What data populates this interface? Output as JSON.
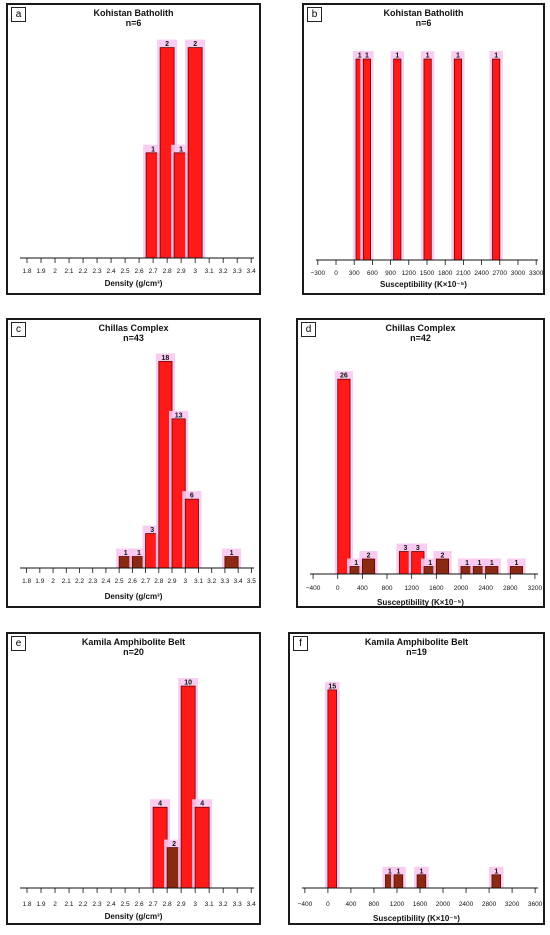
{
  "chart_data": [
    {
      "panel": "a",
      "type": "bar",
      "title": "Kohistan Batholith",
      "n": "n=6",
      "xlabel": "Density (g/cm³)",
      "xlim": [
        1.75,
        3.42
      ],
      "ticks": [
        1.8,
        1.9,
        2,
        2.1,
        2.2,
        2.3,
        2.4,
        2.5,
        2.6,
        2.7,
        2.8,
        2.9,
        3,
        3.1,
        3.2,
        3.3,
        3.4
      ],
      "tick_labels": [
        "1.8",
        "1.9",
        "2",
        "2.1",
        "2.2",
        "2.3",
        "2.4",
        "2.5",
        "2.6",
        "2.7",
        "2.8",
        "2.9",
        "3",
        "3.1",
        "3.2",
        "3.3",
        "3.4"
      ],
      "bars": [
        {
          "x0": 2.65,
          "x1": 2.75,
          "value": 1
        },
        {
          "x0": 2.75,
          "x1": 2.85,
          "value": 2
        },
        {
          "x0": 2.85,
          "x1": 2.95,
          "value": 1
        },
        {
          "x0": 2.95,
          "x1": 3.05,
          "value": 2
        }
      ],
      "ylim": [
        0,
        2.12
      ]
    },
    {
      "panel": "b",
      "type": "bar",
      "title": "Kohistan Batholith",
      "n": "n=6",
      "xlabel": "Susceptibility (K×10⁻⁵)",
      "xlim": [
        -330,
        3330
      ],
      "ticks": [
        -300,
        0,
        300,
        600,
        900,
        1200,
        1500,
        1800,
        2100,
        2400,
        2700,
        3000,
        3300
      ],
      "tick_labels": [
        "−300",
        "0",
        "300",
        "600",
        "900",
        "1200",
        "1500",
        "1800",
        "2100",
        "2400",
        "2700",
        "3000",
        "3300"
      ],
      "bars": [
        {
          "x0": 330,
          "x1": 450,
          "value": 1
        },
        {
          "x0": 450,
          "x1": 570,
          "value": 1
        },
        {
          "x0": 950,
          "x1": 1070,
          "value": 1
        },
        {
          "x0": 1450,
          "x1": 1570,
          "value": 1
        },
        {
          "x0": 1950,
          "x1": 2070,
          "value": 1
        },
        {
          "x0": 2580,
          "x1": 2700,
          "value": 1
        }
      ],
      "ylim": [
        0,
        1.06
      ]
    },
    {
      "panel": "c",
      "type": "bar",
      "title": "Chillas Complex",
      "n": "n=43",
      "xlabel": "Density (g/cm³)",
      "xlim": [
        1.75,
        3.52
      ],
      "ticks": [
        1.8,
        1.9,
        2,
        2.1,
        2.2,
        2.3,
        2.4,
        2.5,
        2.6,
        2.7,
        2.8,
        2.9,
        3,
        3.1,
        3.2,
        3.3,
        3.4,
        3.5
      ],
      "tick_labels": [
        "1.8",
        "1.9",
        "2",
        "2.1",
        "2.2",
        "2.3",
        "2.4",
        "2.5",
        "2.6",
        "2.7",
        "2.8",
        "2.9",
        "3",
        "3.1",
        "3.2",
        "3.3",
        "3.4",
        "3.5"
      ],
      "bars": [
        {
          "x0": 2.5,
          "x1": 2.6,
          "value": 1
        },
        {
          "x0": 2.6,
          "x1": 2.7,
          "value": 1
        },
        {
          "x0": 2.7,
          "x1": 2.8,
          "value": 3
        },
        {
          "x0": 2.8,
          "x1": 2.9,
          "value": 18
        },
        {
          "x0": 2.9,
          "x1": 3.0,
          "value": 13
        },
        {
          "x0": 3.0,
          "x1": 3.1,
          "value": 6
        },
        {
          "x0": 3.3,
          "x1": 3.4,
          "value": 1
        }
      ],
      "ylim": [
        0,
        19
      ]
    },
    {
      "panel": "d",
      "type": "bar",
      "title": "Chillas Complex",
      "n": "n=42",
      "xlabel": "Susceptibility (K×10⁻⁵)",
      "xlim": [
        -450,
        3250
      ],
      "ticks": [
        -400,
        0,
        400,
        800,
        1200,
        1600,
        2000,
        2400,
        2800,
        3200
      ],
      "tick_labels": [
        "−400",
        "0",
        "400",
        "800",
        "1200",
        "1600",
        "2000",
        "2400",
        "2800",
        "3200"
      ],
      "bars": [
        {
          "x0": 0,
          "x1": 200,
          "value": 26
        },
        {
          "x0": 200,
          "x1": 400,
          "value": 1
        },
        {
          "x0": 400,
          "x1": 600,
          "value": 2
        },
        {
          "x0": 1000,
          "x1": 1200,
          "value": 3
        },
        {
          "x0": 1200,
          "x1": 1400,
          "value": 3
        },
        {
          "x0": 1400,
          "x1": 1600,
          "value": 1
        },
        {
          "x0": 1600,
          "x1": 1800,
          "value": 2
        },
        {
          "x0": 2000,
          "x1": 2200,
          "value": 1
        },
        {
          "x0": 2200,
          "x1": 2400,
          "value": 1
        },
        {
          "x0": 2400,
          "x1": 2600,
          "value": 1
        },
        {
          "x0": 2800,
          "x1": 3000,
          "value": 1
        }
      ],
      "ylim": [
        0,
        27.5
      ]
    },
    {
      "panel": "e",
      "type": "bar",
      "title": "Kamila Amphibolite Belt",
      "n": "n=20",
      "xlabel": "Density (g/cm³)",
      "xlim": [
        1.75,
        3.42
      ],
      "ticks": [
        1.8,
        1.9,
        2,
        2.1,
        2.2,
        2.3,
        2.4,
        2.5,
        2.6,
        2.7,
        2.8,
        2.9,
        3,
        3.1,
        3.2,
        3.3,
        3.4
      ],
      "tick_labels": [
        "1.8",
        "1.9",
        "2",
        "2.1",
        "2.2",
        "2.3",
        "2.4",
        "2.5",
        "2.6",
        "2.7",
        "2.8",
        "2.9",
        "3",
        "3.1",
        "3.2",
        "3.3",
        "3.4"
      ],
      "bars": [
        {
          "x0": 2.7,
          "x1": 2.8,
          "value": 4
        },
        {
          "x0": 2.8,
          "x1": 2.9,
          "value": 2
        },
        {
          "x0": 2.9,
          "x1": 3.0,
          "value": 10
        },
        {
          "x0": 3.0,
          "x1": 3.1,
          "value": 4
        }
      ],
      "ylim": [
        0,
        10.4
      ]
    },
    {
      "panel": "f",
      "type": "bar",
      "title": "Kamila Amphibolite Belt",
      "n": "n=19",
      "xlabel": "Susceptibility (K×10⁻⁵)",
      "xlim": [
        -450,
        3650
      ],
      "ticks": [
        -400,
        0,
        400,
        800,
        1200,
        1600,
        2000,
        2400,
        2800,
        3200,
        3600
      ],
      "tick_labels": [
        "−400",
        "0",
        "400",
        "800",
        "1200",
        "1600",
        "2000",
        "2400",
        "2800",
        "3200",
        "3600"
      ],
      "bars": [
        {
          "x0": 0,
          "x1": 150,
          "value": 15
        },
        {
          "x0": 1000,
          "x1": 1150,
          "value": 1
        },
        {
          "x0": 1150,
          "x1": 1300,
          "value": 1
        },
        {
          "x0": 1550,
          "x1": 1700,
          "value": 1
        },
        {
          "x0": 2850,
          "x1": 3000,
          "value": 1
        }
      ],
      "ylim": [
        0,
        15.6
      ]
    }
  ],
  "colors": {
    "bar_fill": "#ff1a1a",
    "bar_fill_dark": "#8b2a12",
    "bar_stroke": "#6a0000",
    "halo": "#f8c8f0"
  }
}
